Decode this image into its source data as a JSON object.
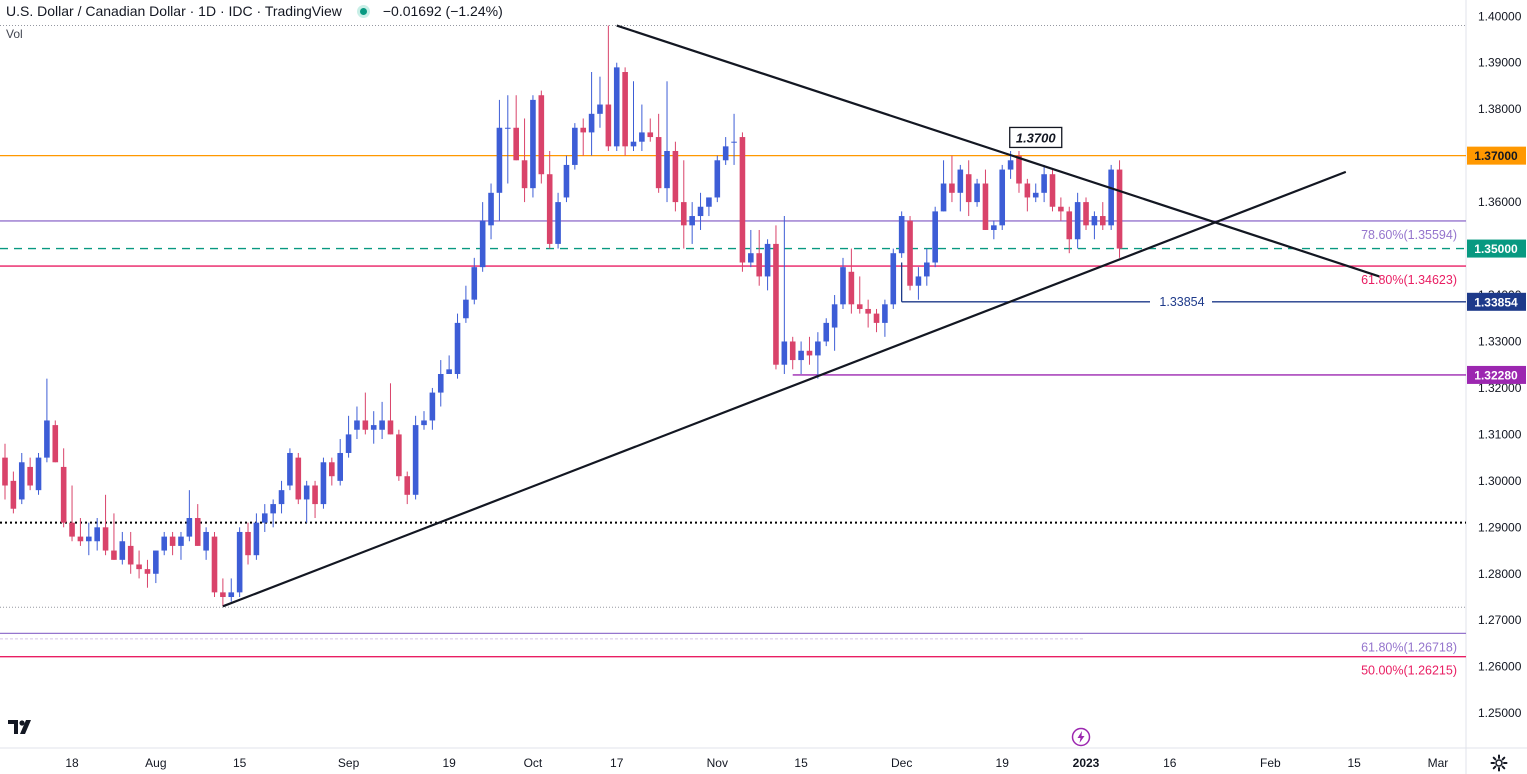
{
  "header": {
    "symbol_title": "U.S. Dollar / Canadian Dollar · 1D · IDC · TradingView",
    "change": "−0.01692 (−1.24%)",
    "status_color": "#089981",
    "volume_label": "Vol"
  },
  "toolbar": {
    "logo_icon": "tradingview-logo-icon",
    "settings_icon": "gear-icon",
    "events_icon": "lightning-icon"
  },
  "chart_data": {
    "type": "candlestick",
    "title": "U.S. Dollar / Canadian Dollar · 1D · IDC · TradingView",
    "ylim": [
      1.2425,
      1.4035
    ],
    "y_ticks": [
      1.25,
      1.26,
      1.27,
      1.28,
      1.29,
      1.3,
      1.31,
      1.32,
      1.33,
      1.34,
      1.35,
      1.36,
      1.37,
      1.38,
      1.39,
      1.4
    ],
    "y_tick_labels": [
      "1.25000",
      "1.26000",
      "1.27000",
      "1.28000",
      "1.29000",
      "1.30000",
      "1.31000",
      "1.32000",
      "1.33000",
      "1.34000",
      "1.35000",
      "1.36000",
      "1.37000",
      "1.38000",
      "1.39000",
      "1.40000"
    ],
    "x_ticks": [
      {
        "label": "18",
        "i": 8
      },
      {
        "label": "Aug",
        "i": 18
      },
      {
        "label": "15",
        "i": 28
      },
      {
        "label": "Sep",
        "i": 41
      },
      {
        "label": "19",
        "i": 53
      },
      {
        "label": "Oct",
        "i": 63
      },
      {
        "label": "17",
        "i": 73
      },
      {
        "label": "Nov",
        "i": 85
      },
      {
        "label": "15",
        "i": 95
      },
      {
        "label": "Dec",
        "i": 107
      },
      {
        "label": "19",
        "i": 119
      },
      {
        "label": "2023",
        "i": 129
      },
      {
        "label": "16",
        "i": 139
      },
      {
        "label": "Feb",
        "i": 151
      },
      {
        "label": "15",
        "i": 161
      },
      {
        "label": "Mar",
        "i": 171
      }
    ],
    "up_color": "#3d5dd6",
    "down_color": "#d9436a",
    "candles": [
      {
        "o": 1.305,
        "h": 1.308,
        "l": 1.296,
        "c": 1.299
      },
      {
        "o": 1.3,
        "h": 1.302,
        "l": 1.293,
        "c": 1.294
      },
      {
        "o": 1.296,
        "h": 1.306,
        "l": 1.295,
        "c": 1.304
      },
      {
        "o": 1.303,
        "h": 1.305,
        "l": 1.298,
        "c": 1.299
      },
      {
        "o": 1.298,
        "h": 1.306,
        "l": 1.297,
        "c": 1.305
      },
      {
        "o": 1.305,
        "h": 1.322,
        "l": 1.304,
        "c": 1.313
      },
      {
        "o": 1.312,
        "h": 1.313,
        "l": 1.304,
        "c": 1.304
      },
      {
        "o": 1.303,
        "h": 1.307,
        "l": 1.29,
        "c": 1.291
      },
      {
        "o": 1.291,
        "h": 1.299,
        "l": 1.287,
        "c": 1.288
      },
      {
        "o": 1.288,
        "h": 1.292,
        "l": 1.286,
        "c": 1.287
      },
      {
        "o": 1.287,
        "h": 1.291,
        "l": 1.284,
        "c": 1.288
      },
      {
        "o": 1.287,
        "h": 1.292,
        "l": 1.285,
        "c": 1.29
      },
      {
        "o": 1.29,
        "h": 1.297,
        "l": 1.284,
        "c": 1.285
      },
      {
        "o": 1.285,
        "h": 1.293,
        "l": 1.283,
        "c": 1.283
      },
      {
        "o": 1.283,
        "h": 1.289,
        "l": 1.282,
        "c": 1.287
      },
      {
        "o": 1.286,
        "h": 1.289,
        "l": 1.28,
        "c": 1.282
      },
      {
        "o": 1.282,
        "h": 1.285,
        "l": 1.279,
        "c": 1.281
      },
      {
        "o": 1.281,
        "h": 1.283,
        "l": 1.277,
        "c": 1.28
      },
      {
        "o": 1.28,
        "h": 1.285,
        "l": 1.278,
        "c": 1.285
      },
      {
        "o": 1.285,
        "h": 1.289,
        "l": 1.284,
        "c": 1.288
      },
      {
        "o": 1.288,
        "h": 1.289,
        "l": 1.284,
        "c": 1.286
      },
      {
        "o": 1.286,
        "h": 1.289,
        "l": 1.283,
        "c": 1.288
      },
      {
        "o": 1.288,
        "h": 1.298,
        "l": 1.287,
        "c": 1.292
      },
      {
        "o": 1.292,
        "h": 1.295,
        "l": 1.286,
        "c": 1.286
      },
      {
        "o": 1.285,
        "h": 1.29,
        "l": 1.283,
        "c": 1.289
      },
      {
        "o": 1.288,
        "h": 1.289,
        "l": 1.275,
        "c": 1.276
      },
      {
        "o": 1.276,
        "h": 1.279,
        "l": 1.273,
        "c": 1.275
      },
      {
        "o": 1.275,
        "h": 1.279,
        "l": 1.274,
        "c": 1.276
      },
      {
        "o": 1.276,
        "h": 1.29,
        "l": 1.275,
        "c": 1.289
      },
      {
        "o": 1.289,
        "h": 1.291,
        "l": 1.282,
        "c": 1.284
      },
      {
        "o": 1.284,
        "h": 1.293,
        "l": 1.283,
        "c": 1.291
      },
      {
        "o": 1.291,
        "h": 1.295,
        "l": 1.289,
        "c": 1.293
      },
      {
        "o": 1.293,
        "h": 1.296,
        "l": 1.29,
        "c": 1.295
      },
      {
        "o": 1.295,
        "h": 1.3,
        "l": 1.293,
        "c": 1.298
      },
      {
        "o": 1.299,
        "h": 1.307,
        "l": 1.298,
        "c": 1.306
      },
      {
        "o": 1.305,
        "h": 1.306,
        "l": 1.295,
        "c": 1.296
      },
      {
        "o": 1.296,
        "h": 1.3,
        "l": 1.291,
        "c": 1.299
      },
      {
        "o": 1.299,
        "h": 1.3,
        "l": 1.292,
        "c": 1.295
      },
      {
        "o": 1.295,
        "h": 1.305,
        "l": 1.294,
        "c": 1.304
      },
      {
        "o": 1.304,
        "h": 1.305,
        "l": 1.299,
        "c": 1.301
      },
      {
        "o": 1.3,
        "h": 1.309,
        "l": 1.299,
        "c": 1.306
      },
      {
        "o": 1.306,
        "h": 1.314,
        "l": 1.305,
        "c": 1.31
      },
      {
        "o": 1.311,
        "h": 1.316,
        "l": 1.309,
        "c": 1.313
      },
      {
        "o": 1.313,
        "h": 1.319,
        "l": 1.31,
        "c": 1.311
      },
      {
        "o": 1.311,
        "h": 1.315,
        "l": 1.308,
        "c": 1.312
      },
      {
        "o": 1.311,
        "h": 1.317,
        "l": 1.309,
        "c": 1.313
      },
      {
        "o": 1.313,
        "h": 1.321,
        "l": 1.31,
        "c": 1.31
      },
      {
        "o": 1.31,
        "h": 1.311,
        "l": 1.3,
        "c": 1.301
      },
      {
        "o": 1.301,
        "h": 1.302,
        "l": 1.295,
        "c": 1.297
      },
      {
        "o": 1.297,
        "h": 1.314,
        "l": 1.296,
        "c": 1.312
      },
      {
        "o": 1.312,
        "h": 1.315,
        "l": 1.311,
        "c": 1.313
      },
      {
        "o": 1.313,
        "h": 1.32,
        "l": 1.311,
        "c": 1.319
      },
      {
        "o": 1.319,
        "h": 1.326,
        "l": 1.316,
        "c": 1.323
      },
      {
        "o": 1.323,
        "h": 1.327,
        "l": 1.323,
        "c": 1.324
      },
      {
        "o": 1.323,
        "h": 1.336,
        "l": 1.322,
        "c": 1.334
      },
      {
        "o": 1.335,
        "h": 1.342,
        "l": 1.334,
        "c": 1.339
      },
      {
        "o": 1.339,
        "h": 1.348,
        "l": 1.338,
        "c": 1.346
      },
      {
        "o": 1.346,
        "h": 1.36,
        "l": 1.345,
        "c": 1.356
      },
      {
        "o": 1.355,
        "h": 1.364,
        "l": 1.352,
        "c": 1.362
      },
      {
        "o": 1.362,
        "h": 1.382,
        "l": 1.356,
        "c": 1.376
      },
      {
        "o": 1.376,
        "h": 1.383,
        "l": 1.364,
        "c": 1.376
      },
      {
        "o": 1.376,
        "h": 1.383,
        "l": 1.369,
        "c": 1.369
      },
      {
        "o": 1.369,
        "h": 1.378,
        "l": 1.36,
        "c": 1.363
      },
      {
        "o": 1.363,
        "h": 1.383,
        "l": 1.361,
        "c": 1.382
      },
      {
        "o": 1.383,
        "h": 1.384,
        "l": 1.364,
        "c": 1.366
      },
      {
        "o": 1.366,
        "h": 1.371,
        "l": 1.35,
        "c": 1.351
      },
      {
        "o": 1.351,
        "h": 1.362,
        "l": 1.35,
        "c": 1.36
      },
      {
        "o": 1.361,
        "h": 1.37,
        "l": 1.36,
        "c": 1.368
      },
      {
        "o": 1.368,
        "h": 1.377,
        "l": 1.367,
        "c": 1.376
      },
      {
        "o": 1.376,
        "h": 1.378,
        "l": 1.37,
        "c": 1.375
      },
      {
        "o": 1.375,
        "h": 1.388,
        "l": 1.37,
        "c": 1.379
      },
      {
        "o": 1.379,
        "h": 1.387,
        "l": 1.376,
        "c": 1.381
      },
      {
        "o": 1.381,
        "h": 1.398,
        "l": 1.371,
        "c": 1.372
      },
      {
        "o": 1.372,
        "h": 1.39,
        "l": 1.371,
        "c": 1.389
      },
      {
        "o": 1.388,
        "h": 1.389,
        "l": 1.37,
        "c": 1.372
      },
      {
        "o": 1.372,
        "h": 1.386,
        "l": 1.371,
        "c": 1.373
      },
      {
        "o": 1.373,
        "h": 1.381,
        "l": 1.371,
        "c": 1.375
      },
      {
        "o": 1.375,
        "h": 1.378,
        "l": 1.373,
        "c": 1.374
      },
      {
        "o": 1.374,
        "h": 1.379,
        "l": 1.362,
        "c": 1.363
      },
      {
        "o": 1.363,
        "h": 1.386,
        "l": 1.36,
        "c": 1.371
      },
      {
        "o": 1.371,
        "h": 1.373,
        "l": 1.358,
        "c": 1.36
      },
      {
        "o": 1.36,
        "h": 1.369,
        "l": 1.35,
        "c": 1.355
      },
      {
        "o": 1.355,
        "h": 1.36,
        "l": 1.351,
        "c": 1.357
      },
      {
        "o": 1.357,
        "h": 1.362,
        "l": 1.354,
        "c": 1.359
      },
      {
        "o": 1.359,
        "h": 1.361,
        "l": 1.357,
        "c": 1.361
      },
      {
        "o": 1.361,
        "h": 1.37,
        "l": 1.36,
        "c": 1.369
      },
      {
        "o": 1.369,
        "h": 1.374,
        "l": 1.368,
        "c": 1.372
      },
      {
        "o": 1.373,
        "h": 1.379,
        "l": 1.368,
        "c": 1.373
      },
      {
        "o": 1.374,
        "h": 1.375,
        "l": 1.345,
        "c": 1.347
      },
      {
        "o": 1.347,
        "h": 1.354,
        "l": 1.346,
        "c": 1.349
      },
      {
        "o": 1.349,
        "h": 1.354,
        "l": 1.342,
        "c": 1.344
      },
      {
        "o": 1.344,
        "h": 1.352,
        "l": 1.341,
        "c": 1.351
      },
      {
        "o": 1.351,
        "h": 1.355,
        "l": 1.324,
        "c": 1.325
      },
      {
        "o": 1.325,
        "h": 1.357,
        "l": 1.323,
        "c": 1.33
      },
      {
        "o": 1.33,
        "h": 1.331,
        "l": 1.324,
        "c": 1.326
      },
      {
        "o": 1.326,
        "h": 1.33,
        "l": 1.323,
        "c": 1.328
      },
      {
        "o": 1.328,
        "h": 1.331,
        "l": 1.325,
        "c": 1.327
      },
      {
        "o": 1.327,
        "h": 1.332,
        "l": 1.322,
        "c": 1.33
      },
      {
        "o": 1.33,
        "h": 1.335,
        "l": 1.329,
        "c": 1.334
      },
      {
        "o": 1.333,
        "h": 1.34,
        "l": 1.328,
        "c": 1.338
      },
      {
        "o": 1.338,
        "h": 1.348,
        "l": 1.337,
        "c": 1.346
      },
      {
        "o": 1.345,
        "h": 1.35,
        "l": 1.336,
        "c": 1.338
      },
      {
        "o": 1.338,
        "h": 1.344,
        "l": 1.336,
        "c": 1.337
      },
      {
        "o": 1.337,
        "h": 1.339,
        "l": 1.333,
        "c": 1.336
      },
      {
        "o": 1.336,
        "h": 1.337,
        "l": 1.332,
        "c": 1.334
      },
      {
        "o": 1.334,
        "h": 1.339,
        "l": 1.331,
        "c": 1.338
      },
      {
        "o": 1.338,
        "h": 1.35,
        "l": 1.337,
        "c": 1.349
      },
      {
        "o": 1.349,
        "h": 1.358,
        "l": 1.348,
        "c": 1.357
      },
      {
        "o": 1.356,
        "h": 1.357,
        "l": 1.341,
        "c": 1.342
      },
      {
        "o": 1.342,
        "h": 1.346,
        "l": 1.339,
        "c": 1.344
      },
      {
        "o": 1.344,
        "h": 1.35,
        "l": 1.342,
        "c": 1.347
      },
      {
        "o": 1.347,
        "h": 1.359,
        "l": 1.346,
        "c": 1.358
      },
      {
        "o": 1.358,
        "h": 1.369,
        "l": 1.358,
        "c": 1.364
      },
      {
        "o": 1.364,
        "h": 1.37,
        "l": 1.36,
        "c": 1.362
      },
      {
        "o": 1.362,
        "h": 1.368,
        "l": 1.358,
        "c": 1.367
      },
      {
        "o": 1.366,
        "h": 1.369,
        "l": 1.357,
        "c": 1.36
      },
      {
        "o": 1.36,
        "h": 1.365,
        "l": 1.359,
        "c": 1.364
      },
      {
        "o": 1.364,
        "h": 1.367,
        "l": 1.354,
        "c": 1.354
      },
      {
        "o": 1.354,
        "h": 1.356,
        "l": 1.352,
        "c": 1.355
      },
      {
        "o": 1.355,
        "h": 1.368,
        "l": 1.354,
        "c": 1.367
      },
      {
        "o": 1.367,
        "h": 1.371,
        "l": 1.365,
        "c": 1.369
      },
      {
        "o": 1.37,
        "h": 1.371,
        "l": 1.362,
        "c": 1.364
      },
      {
        "o": 1.364,
        "h": 1.365,
        "l": 1.358,
        "c": 1.361
      },
      {
        "o": 1.361,
        "h": 1.364,
        "l": 1.36,
        "c": 1.362
      },
      {
        "o": 1.362,
        "h": 1.368,
        "l": 1.36,
        "c": 1.366
      },
      {
        "o": 1.366,
        "h": 1.367,
        "l": 1.358,
        "c": 1.359
      },
      {
        "o": 1.359,
        "h": 1.361,
        "l": 1.356,
        "c": 1.358
      },
      {
        "o": 1.358,
        "h": 1.359,
        "l": 1.349,
        "c": 1.352
      },
      {
        "o": 1.352,
        "h": 1.362,
        "l": 1.35,
        "c": 1.36
      },
      {
        "o": 1.36,
        "h": 1.361,
        "l": 1.354,
        "c": 1.355
      },
      {
        "o": 1.355,
        "h": 1.358,
        "l": 1.352,
        "c": 1.357
      },
      {
        "o": 1.357,
        "h": 1.36,
        "l": 1.354,
        "c": 1.355
      },
      {
        "o": 1.355,
        "h": 1.368,
        "l": 1.354,
        "c": 1.367
      },
      {
        "o": 1.367,
        "h": 1.369,
        "l": 1.348,
        "c": 1.35
      }
    ],
    "horizontal_levels": [
      {
        "value": 1.37,
        "color": "#ff9800",
        "axis_label": "1.37000"
      },
      {
        "value": 1.35594,
        "color": "#9575cd",
        "label": "78.60%(1.35594)"
      },
      {
        "value": 1.35,
        "color": "#089981",
        "dashed": true,
        "axis_label": "1.35000"
      },
      {
        "value": 1.34623,
        "color": "#e91e63",
        "label": "61.80%(1.34623)"
      },
      {
        "value": 1.33854,
        "color": "#1e3a8a",
        "axis_label": "1.33854",
        "mid_label": "1.33854"
      },
      {
        "value": 1.3228,
        "color": "#9c27b0",
        "axis_label": "1.32280"
      },
      {
        "value": 1.291,
        "color": "#000000",
        "dotted": true
      },
      {
        "value": 1.26718,
        "color": "#9575cd",
        "label": "61.80%(1.26718)"
      },
      {
        "value": 1.26215,
        "color": "#e91e63",
        "label": "50.00%(1.26215)"
      }
    ],
    "trendlines": [
      {
        "name": "descending-resistance",
        "from": {
          "i": 73,
          "price": 1.398
        },
        "to": {
          "i": 164,
          "price": 1.344
        }
      },
      {
        "name": "ascending-support",
        "from": {
          "i": 26,
          "price": 1.273
        },
        "to": {
          "i": 160,
          "price": 1.3665
        }
      }
    ],
    "annotation": {
      "text": "1.3700",
      "i": 123,
      "price": 1.3737
    }
  }
}
